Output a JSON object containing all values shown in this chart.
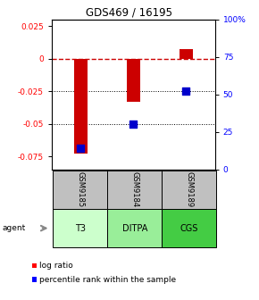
{
  "title": "GDS469 / 16195",
  "categories": [
    "T3",
    "DITPA",
    "CGS"
  ],
  "sample_ids": [
    "GSM9185",
    "GSM9184",
    "GSM9189"
  ],
  "log_ratios": [
    -0.073,
    -0.033,
    0.007
  ],
  "percentile_ranks_pct": [
    14,
    30,
    52
  ],
  "ylim_left": [
    -0.085,
    0.03
  ],
  "ylim_right": [
    0,
    100
  ],
  "yticks_left": [
    0.025,
    0.0,
    -0.025,
    -0.05,
    -0.075
  ],
  "ytick_labels_left": [
    "0.025",
    "0",
    "-0.025",
    "-0.05",
    "-0.075"
  ],
  "yticks_right": [
    100,
    75,
    50,
    25,
    0
  ],
  "ytick_labels_right": [
    "100%",
    "75",
    "50",
    "25",
    "0"
  ],
  "bar_color": "#cc0000",
  "dot_color": "#0000cc",
  "zero_line_color": "#cc0000",
  "cell_colors_top": [
    "#c0c0c0",
    "#c0c0c0",
    "#c0c0c0"
  ],
  "cell_colors_bottom": [
    "#ccffcc",
    "#99ee99",
    "#44cc44"
  ],
  "agent_label": "agent",
  "legend_log_ratio": "log ratio",
  "legend_percentile": "percentile rank within the sample",
  "bar_width": 0.25,
  "dot_size": 35
}
